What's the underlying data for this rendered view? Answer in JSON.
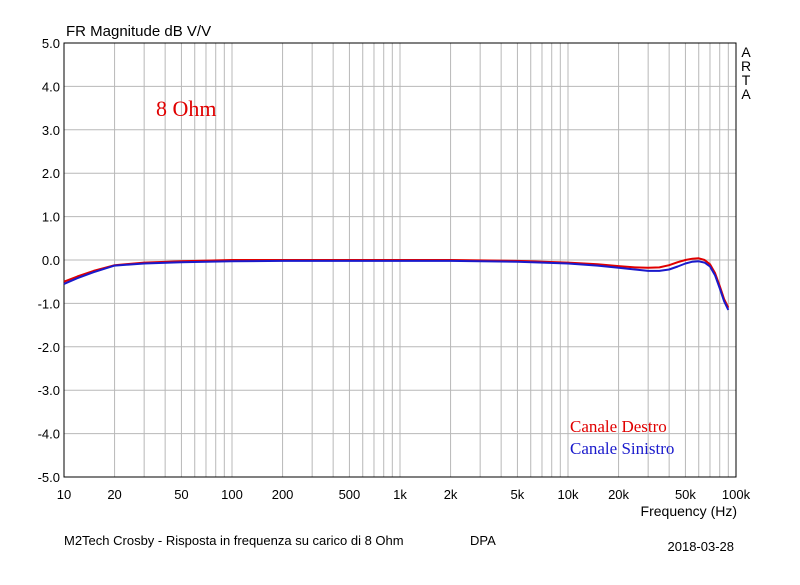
{
  "chart_data": {
    "type": "line",
    "title": "FR Magnitude dB V/V",
    "xlabel": "Frequency (Hz)",
    "ylabel": "",
    "xscale": "log",
    "xlim": [
      10,
      100000
    ],
    "ylim": [
      -5,
      5
    ],
    "grid": true,
    "x_ticks": [
      "10",
      "20",
      "50",
      "100",
      "200",
      "500",
      "1k",
      "2k",
      "5k",
      "10k",
      "20k",
      "50k",
      "100k"
    ],
    "x_tick_values": [
      10,
      20,
      50,
      100,
      200,
      500,
      1000,
      2000,
      5000,
      10000,
      20000,
      50000,
      100000
    ],
    "y_ticks": [
      "5.0",
      "4.0",
      "3.0",
      "2.0",
      "1.0",
      "0.0",
      "-1.0",
      "-2.0",
      "-3.0",
      "-4.0",
      "-5.0"
    ],
    "y_tick_values": [
      5,
      4,
      3,
      2,
      1,
      0,
      -1,
      -2,
      -3,
      -4,
      -5
    ],
    "annotation": "8 Ohm",
    "annotation_color": "#e00000",
    "side_label": [
      "A",
      "R",
      "T",
      "A"
    ],
    "footer_caption": "M2Tech Crosby - Risposta in frequenza su carico di 8 Ohm",
    "footer_tag": "DPA",
    "footer_date": "2018-03-28",
    "legend_placement": "bottom-right",
    "x": [
      10,
      12,
      15,
      20,
      30,
      50,
      100,
      200,
      500,
      1000,
      2000,
      5000,
      10000,
      15000,
      20000,
      25000,
      30000,
      35000,
      40000,
      45000,
      50000,
      55000,
      60000,
      65000,
      70000,
      75000,
      80000,
      85000,
      90000
    ],
    "series": [
      {
        "name": "Canale Destro",
        "color": "#e00000",
        "values": [
          -0.5,
          -0.38,
          -0.25,
          -0.12,
          -0.06,
          -0.03,
          0.0,
          0.0,
          0.0,
          0.0,
          0.0,
          -0.02,
          -0.06,
          -0.1,
          -0.14,
          -0.17,
          -0.18,
          -0.17,
          -0.12,
          -0.05,
          0.0,
          0.03,
          0.04,
          0.0,
          -0.1,
          -0.3,
          -0.6,
          -0.9,
          -1.1
        ]
      },
      {
        "name": "Canale Sinistro",
        "color": "#1a1acc",
        "values": [
          -0.55,
          -0.42,
          -0.28,
          -0.13,
          -0.08,
          -0.05,
          -0.03,
          -0.02,
          -0.02,
          -0.02,
          -0.02,
          -0.04,
          -0.08,
          -0.13,
          -0.18,
          -0.22,
          -0.25,
          -0.25,
          -0.22,
          -0.15,
          -0.08,
          -0.04,
          -0.03,
          -0.06,
          -0.15,
          -0.35,
          -0.65,
          -0.95,
          -1.15
        ]
      }
    ]
  }
}
